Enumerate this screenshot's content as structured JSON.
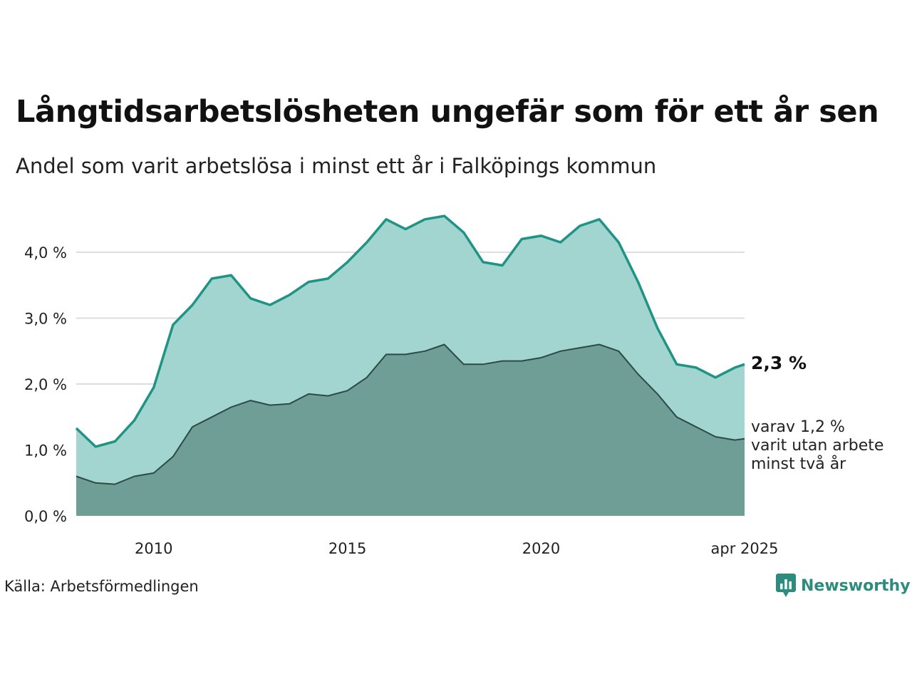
{
  "header": {
    "title": "Långtidsarbetslösheten ungefär som för ett år sen",
    "subtitle": "Andel som varit arbetslösa i minst ett år i Falköpings kommun"
  },
  "footer": {
    "source": "Källa: Arbetsförmedlingen",
    "logo_text": "Newsworthy"
  },
  "annotations": {
    "end_value": "2,3 %",
    "note_lines": [
      "varav 1,2 %",
      "varit utan arbete",
      "minst två år"
    ]
  },
  "colors": {
    "total_line": "#1f9485",
    "total_fill": "#a2d5cf",
    "long_fill": "#6f9e97",
    "long_line": "#2c4a46",
    "grid": "#dddddd"
  },
  "chart_data": {
    "type": "area",
    "title": "Långtidsarbetslösheten ungefär som för ett år sen",
    "subtitle": "Andel som varit arbetslösa i minst ett år i Falköpings kommun",
    "x_tick_labels": [
      "2010",
      "2015",
      "2020",
      "apr 2025"
    ],
    "x_tick_dates": [
      "2010-01",
      "2015-01",
      "2020-01",
      "2025-04"
    ],
    "y_tick_labels": [
      "0,0 %",
      "1,0 %",
      "2,0 %",
      "3,0 %",
      "4,0 %"
    ],
    "ylim": [
      0,
      4.6
    ],
    "grid": true,
    "x": [
      "2008-01",
      "2008-07",
      "2009-01",
      "2009-07",
      "2010-01",
      "2010-07",
      "2011-01",
      "2011-07",
      "2012-01",
      "2012-07",
      "2013-01",
      "2013-07",
      "2014-01",
      "2014-07",
      "2015-01",
      "2015-07",
      "2016-01",
      "2016-07",
      "2017-01",
      "2017-07",
      "2018-01",
      "2018-07",
      "2019-01",
      "2019-07",
      "2020-01",
      "2020-07",
      "2021-01",
      "2021-07",
      "2022-01",
      "2022-07",
      "2023-01",
      "2023-07",
      "2024-01",
      "2024-07",
      "2025-01",
      "2025-04"
    ],
    "series": [
      {
        "values": [
          1.33,
          1.05,
          1.13,
          1.45,
          1.95,
          2.9,
          3.2,
          3.6,
          3.65,
          3.3,
          3.2,
          3.35,
          3.55,
          3.6,
          3.85,
          4.15,
          4.5,
          4.35,
          4.5,
          4.55,
          4.3,
          3.85,
          3.8,
          4.2,
          4.25,
          4.15,
          4.4,
          4.5,
          4.15,
          3.55,
          2.85,
          2.3,
          2.25,
          2.1,
          2.25,
          2.3
        ]
      },
      {
        "values": [
          0.6,
          0.5,
          0.48,
          0.6,
          0.65,
          0.9,
          1.35,
          1.5,
          1.65,
          1.75,
          1.68,
          1.7,
          1.85,
          1.82,
          1.9,
          2.1,
          2.45,
          2.45,
          2.5,
          2.6,
          2.3,
          2.3,
          2.35,
          2.35,
          2.4,
          2.5,
          2.55,
          2.6,
          2.5,
          2.15,
          1.85,
          1.5,
          1.35,
          1.2,
          1.15,
          1.17
        ]
      }
    ]
  }
}
